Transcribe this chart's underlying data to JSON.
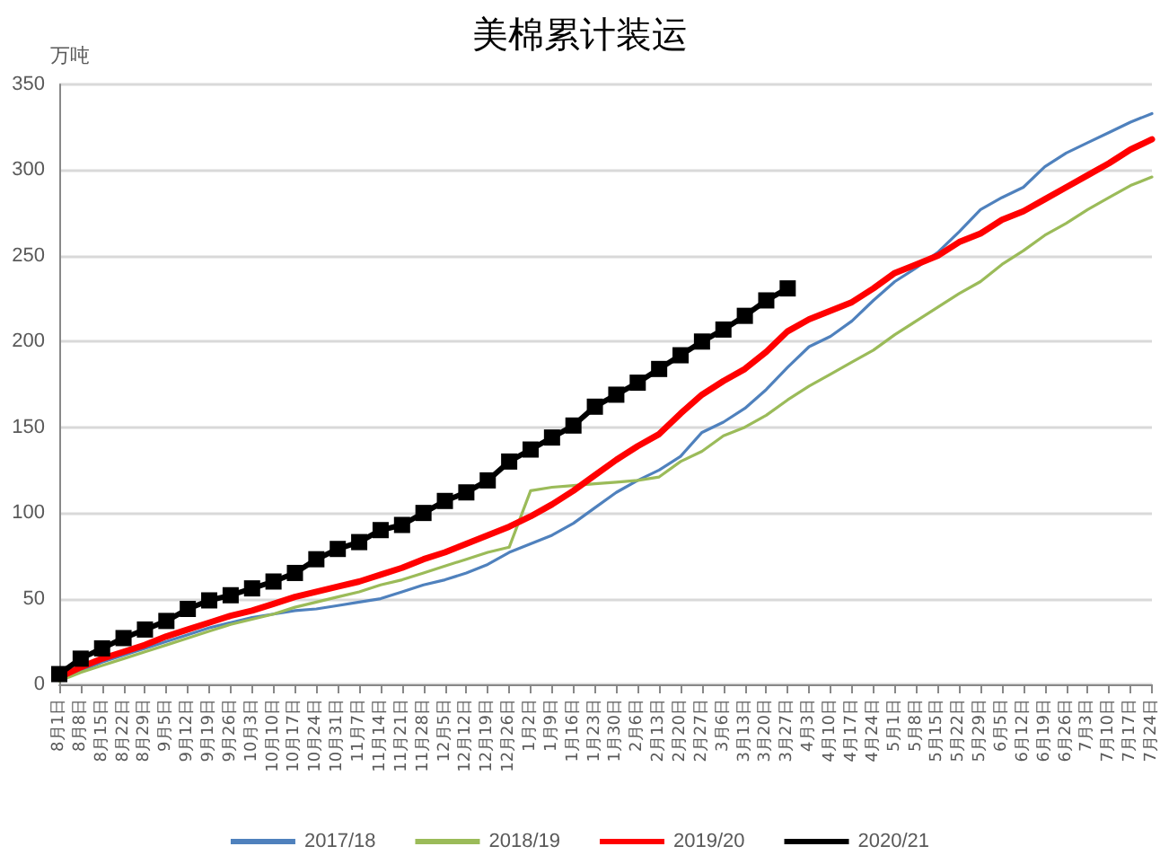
{
  "chart_data": {
    "type": "line",
    "title": "美棉累计装运",
    "ylabel": "万吨",
    "categories": [
      "8月1日",
      "8月8日",
      "8月15日",
      "8月22日",
      "8月29日",
      "9月5日",
      "9月12日",
      "9月19日",
      "9月26日",
      "10月3日",
      "10月10日",
      "10月17日",
      "10月24日",
      "10月31日",
      "11月7日",
      "11月14日",
      "11月21日",
      "11月28日",
      "12月5日",
      "12月12日",
      "12月19日",
      "12月26日",
      "1月2日",
      "1月9日",
      "1月16日",
      "1月23日",
      "1月30日",
      "2月6日",
      "2月13日",
      "2月20日",
      "2月27日",
      "3月6日",
      "3月13日",
      "3月20日",
      "3月27日",
      "4月3日",
      "4月10日",
      "4月17日",
      "4月24日",
      "5月1日",
      "5月8日",
      "5月15日",
      "5月22日",
      "5月29日",
      "6月5日",
      "6月12日",
      "6月19日",
      "6月26日",
      "7月3日",
      "7月10日",
      "7月17日",
      "7月24日"
    ],
    "series": [
      {
        "name": "2017/18",
        "color": "#4f81bd",
        "marker": "none",
        "values": [
          3,
          8,
          13,
          17,
          21,
          25,
          29,
          33,
          36,
          39,
          41,
          43,
          44,
          46,
          48,
          50,
          54,
          58,
          61,
          65,
          70,
          77,
          82,
          87,
          94,
          103,
          112,
          119,
          125,
          133,
          147,
          153,
          161,
          172,
          185,
          197,
          203,
          212,
          224,
          235,
          243,
          252,
          264,
          277,
          284,
          290,
          302,
          310,
          316,
          322,
          328,
          333
        ]
      },
      {
        "name": "2018/19",
        "color": "#9bbb59",
        "marker": "none",
        "values": [
          2,
          7,
          11,
          15,
          19,
          23,
          27,
          31,
          35,
          38,
          41,
          45,
          48,
          51,
          54,
          58,
          61,
          65,
          69,
          73,
          77,
          80,
          113,
          115,
          116,
          117,
          118,
          119,
          121,
          130,
          136,
          145,
          150,
          157,
          166,
          174,
          181,
          188,
          195,
          204,
          212,
          220,
          228,
          235,
          245,
          253,
          262,
          269,
          277,
          284,
          291,
          296
        ]
      },
      {
        "name": "2019/20",
        "color": "#ff0000",
        "marker": "none",
        "values": [
          4,
          10,
          15,
          19,
          23,
          28,
          32,
          36,
          40,
          43,
          47,
          51,
          54,
          57,
          60,
          64,
          68,
          73,
          77,
          82,
          87,
          92,
          98,
          105,
          113,
          122,
          131,
          139,
          146,
          158,
          169,
          177,
          184,
          194,
          206,
          213,
          218,
          223,
          231,
          240,
          245,
          250,
          258,
          263,
          271,
          276,
          283,
          290,
          297,
          304,
          312,
          318
        ]
      },
      {
        "name": "2020/21",
        "color": "#000000",
        "marker": "square",
        "values": [
          6,
          15,
          21,
          27,
          32,
          37,
          44,
          49,
          52,
          56,
          60,
          65,
          73,
          79,
          83,
          90,
          93,
          100,
          107,
          112,
          119,
          130,
          137,
          144,
          151,
          162,
          169,
          176,
          184,
          192,
          200,
          207,
          215,
          224,
          231,
          null,
          null,
          null,
          null,
          null,
          null,
          null,
          null,
          null,
          null,
          null,
          null,
          null,
          null,
          null,
          null,
          null
        ]
      }
    ],
    "ylim": [
      0,
      350
    ],
    "yticks": [
      0,
      50,
      100,
      150,
      200,
      250,
      300,
      350
    ],
    "grid": "y",
    "legend": "bottom",
    "line_style": "solid"
  }
}
